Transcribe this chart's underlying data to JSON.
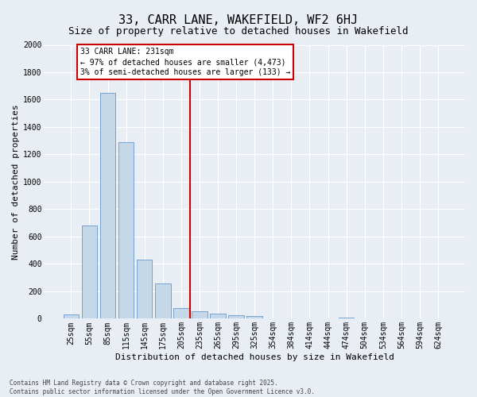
{
  "title": "33, CARR LANE, WAKEFIELD, WF2 6HJ",
  "subtitle": "Size of property relative to detached houses in Wakefield",
  "xlabel": "Distribution of detached houses by size in Wakefield",
  "ylabel": "Number of detached properties",
  "categories": [
    "25sqm",
    "55sqm",
    "85sqm",
    "115sqm",
    "145sqm",
    "175sqm",
    "205sqm",
    "235sqm",
    "265sqm",
    "295sqm",
    "325sqm",
    "354sqm",
    "384sqm",
    "414sqm",
    "444sqm",
    "474sqm",
    "504sqm",
    "534sqm",
    "564sqm",
    "594sqm",
    "624sqm"
  ],
  "values": [
    30,
    680,
    1650,
    1290,
    430,
    255,
    75,
    55,
    35,
    25,
    20,
    0,
    0,
    0,
    0,
    10,
    0,
    0,
    0,
    0,
    0
  ],
  "bar_facecolor": "#c5d8ea",
  "bar_edgecolor": "#6699cc",
  "vline_xindex": 7,
  "vline_color": "#cc0000",
  "annotation_text": "33 CARR LANE: 231sqm\n← 97% of detached houses are smaller (4,473)\n3% of semi-detached houses are larger (133) →",
  "annotation_box_edgecolor": "#cc0000",
  "ylim": [
    0,
    2000
  ],
  "yticks": [
    0,
    200,
    400,
    600,
    800,
    1000,
    1200,
    1400,
    1600,
    1800,
    2000
  ],
  "bg_color": "#e8eef4",
  "grid_color": "#ffffff",
  "title_fontsize": 11,
  "subtitle_fontsize": 9,
  "ylabel_fontsize": 8,
  "xlabel_fontsize": 8,
  "tick_fontsize": 7,
  "footer_line1": "Contains HM Land Registry data © Crown copyright and database right 2025.",
  "footer_line2": "Contains public sector information licensed under the Open Government Licence v3.0."
}
